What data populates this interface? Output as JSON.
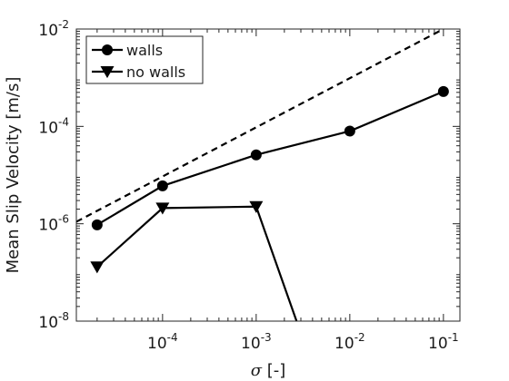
{
  "chart_data": {
    "type": "line",
    "xscale": "log",
    "yscale": "log",
    "xlim": [
      1.2e-05,
      0.15
    ],
    "ylim": [
      1e-08,
      0.01
    ],
    "xlabel_symbol": "σ",
    "xlabel_unit": "[-]",
    "ylabel": "Mean Slip Velocity [m/s]",
    "xticks": [
      {
        "value": 0.0001,
        "base": "10",
        "exp": "-4"
      },
      {
        "value": 0.001,
        "base": "10",
        "exp": "-3"
      },
      {
        "value": 0.01,
        "base": "10",
        "exp": "-2"
      },
      {
        "value": 0.1,
        "base": "10",
        "exp": "-1"
      }
    ],
    "yticks": [
      {
        "value": 1e-08,
        "base": "10",
        "exp": "-8"
      },
      {
        "value": 1e-06,
        "base": "10",
        "exp": "-6"
      },
      {
        "value": 0.0001,
        "base": "10",
        "exp": "-4"
      },
      {
        "value": 0.01,
        "base": "10",
        "exp": "-2"
      }
    ],
    "grid": false,
    "legend_position": "top-left",
    "series": [
      {
        "name": "walls",
        "marker": "circle",
        "color": "#000000",
        "x": [
          2e-05,
          0.0001,
          0.001,
          0.01,
          0.1
        ],
        "y": [
          9.5e-07,
          6e-06,
          2.6e-05,
          8e-05,
          0.00052
        ]
      },
      {
        "name": "no walls",
        "marker": "triangle-down",
        "color": "#000000",
        "x": [
          2e-05,
          0.0001,
          0.001,
          0.0027
        ],
        "y": [
          1.3e-07,
          2.1e-06,
          2.25e-06,
          1e-08
        ]
      }
    ],
    "reference_line": {
      "style": "dashed",
      "color": "#000000",
      "x": [
        1.2e-05,
        0.1
      ],
      "y": [
        1.1e-06,
        0.01
      ]
    }
  }
}
